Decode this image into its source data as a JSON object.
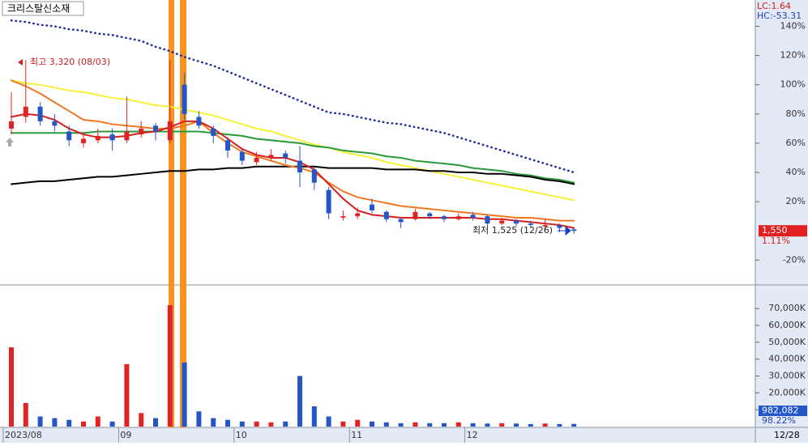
{
  "title": "크리스탈신소재",
  "lc": "LC:1.64",
  "hc": "HC:-53.31",
  "last_date": "12/28",
  "chart_data": [
    {
      "type": "candlestick",
      "categories": [
        "2023/08",
        null,
        null,
        null,
        null,
        null,
        null,
        null,
        "09",
        null,
        null,
        null,
        null,
        null,
        null,
        null,
        "10",
        null,
        null,
        null,
        null,
        null,
        null,
        null,
        "11",
        null,
        null,
        null,
        null,
        null,
        null,
        null,
        "12",
        null,
        null,
        null,
        null,
        null,
        null,
        null
      ],
      "open": [
        70,
        78,
        85,
        75,
        68,
        60,
        62,
        66,
        62,
        66,
        72,
        62,
        100,
        78,
        70,
        62,
        54,
        47,
        50,
        53,
        48,
        42,
        28,
        9,
        10,
        18,
        13,
        8,
        8,
        12,
        10,
        8,
        11,
        10,
        5,
        7,
        5,
        3,
        4,
        1
      ],
      "high": [
        95,
        117,
        88,
        80,
        72,
        66,
        70,
        70,
        92,
        75,
        74,
        117,
        108,
        82,
        72,
        64,
        56,
        54,
        56,
        55,
        58,
        44,
        30,
        14,
        16,
        22,
        14,
        9,
        15,
        13,
        11,
        12,
        13,
        11,
        9,
        8,
        7,
        8,
        5,
        2
      ],
      "low": [
        66,
        74,
        72,
        68,
        58,
        57,
        60,
        55,
        60,
        64,
        62,
        60,
        76,
        70,
        60,
        50,
        45,
        45,
        48,
        46,
        30,
        28,
        8,
        7,
        8,
        12,
        6,
        2,
        7,
        8,
        6,
        7,
        7,
        3,
        4,
        3,
        2,
        1,
        -1,
        -2
      ],
      "close": [
        75,
        85,
        75,
        72,
        62,
        63,
        65,
        62,
        68,
        70,
        68,
        75,
        80,
        72,
        65,
        55,
        48,
        50,
        52,
        50,
        40,
        33,
        12,
        10,
        12,
        14,
        8,
        6,
        13,
        10,
        8,
        10,
        9,
        5,
        7,
        5,
        4,
        4,
        2,
        0
      ],
      "up_color": "#e02424",
      "down_color": "#2456c8",
      "series": [
        {
          "color": "#1c2a9c",
          "dotted": true,
          "values": [
            144,
            143,
            141,
            140,
            138,
            137,
            135,
            134,
            132,
            130,
            126,
            123,
            119,
            116,
            113,
            109,
            105,
            101,
            97,
            93,
            89,
            85,
            81,
            80,
            78,
            76,
            74,
            73,
            71,
            69,
            67,
            64,
            61,
            58,
            55,
            52,
            49,
            46,
            43,
            40
          ]
        },
        {
          "color": "#f5f03a",
          "values": [
            103,
            101,
            100,
            98,
            96,
            95,
            93,
            91,
            90,
            88,
            86,
            85,
            83,
            81,
            79,
            76,
            73,
            70,
            68,
            65,
            62,
            59,
            57,
            54,
            52,
            50,
            47,
            45,
            43,
            41,
            39,
            37,
            35,
            33,
            31,
            29,
            27,
            25,
            23,
            21
          ]
        },
        {
          "color": "#2a9a3a",
          "values": [
            67,
            67,
            67,
            67,
            67,
            67,
            68,
            68,
            68,
            68,
            68,
            68,
            68,
            68,
            67,
            66,
            65,
            63,
            62,
            61,
            60,
            58,
            57,
            55,
            54,
            53,
            51,
            50,
            48,
            47,
            46,
            45,
            43,
            42,
            41,
            39,
            38,
            36,
            35,
            33
          ]
        },
        {
          "color": "#000000",
          "values": [
            32,
            33,
            34,
            34,
            35,
            36,
            37,
            37,
            38,
            39,
            40,
            41,
            41,
            42,
            42,
            43,
            43,
            44,
            44,
            44,
            44,
            44,
            43,
            43,
            43,
            43,
            42,
            42,
            42,
            41,
            41,
            40,
            40,
            39,
            39,
            38,
            37,
            35,
            34,
            32
          ]
        },
        {
          "color": "#f07820",
          "values": [
            103,
            99,
            94,
            88,
            82,
            76,
            75,
            73,
            72,
            71,
            70,
            70,
            72,
            75,
            67,
            60,
            54,
            51,
            48,
            45,
            43,
            40,
            33,
            27,
            23,
            21,
            19,
            17,
            16,
            15,
            14,
            13,
            12,
            11,
            10,
            9,
            9,
            8,
            7,
            7
          ]
        },
        {
          "color": "#d42020",
          "values": [
            78,
            80,
            79,
            76,
            70,
            66,
            64,
            64,
            65,
            67,
            68,
            71,
            75,
            75,
            70,
            63,
            56,
            52,
            50,
            50,
            47,
            42,
            32,
            22,
            14,
            11,
            10,
            9,
            9,
            9,
            9,
            9,
            9,
            8,
            8,
            7,
            6,
            5,
            4,
            2
          ]
        }
      ],
      "ylim": [
        -37,
        158
      ],
      "yticks": [
        {
          "value": 140,
          "label": "140%"
        },
        {
          "value": 120,
          "label": "120%"
        },
        {
          "value": 100,
          "label": "100%"
        },
        {
          "value": 80,
          "label": "80%"
        },
        {
          "value": 60,
          "label": "60%"
        },
        {
          "value": 40,
          "label": "40%"
        },
        {
          "value": 20,
          "label": "20%"
        },
        {
          "value": -20,
          "label": "-20%"
        }
      ],
      "annotations": [
        "최고 3,320 (08/03)",
        "최저 1,525 (12/26)"
      ],
      "price_label": "1,550",
      "change_label": "1.11%"
    },
    {
      "type": "bar",
      "values": [
        47000,
        14000,
        6000,
        5000,
        4000,
        3000,
        6000,
        3000,
        37000,
        8000,
        5000,
        72000,
        38000,
        9000,
        5000,
        4000,
        3000,
        3000,
        2500,
        3000,
        30000,
        12000,
        6000,
        3000,
        4000,
        3000,
        2500,
        2000,
        2500,
        2000,
        2000,
        2500,
        2000,
        1800,
        2000,
        1800,
        1500,
        1800,
        1500,
        1600
      ],
      "ylim": [
        0,
        84000
      ],
      "yticks": [
        {
          "value": 70000,
          "label": "70,000K"
        },
        {
          "value": 60000,
          "label": "60,000K"
        },
        {
          "value": 50000,
          "label": "50,000K"
        },
        {
          "value": 40000,
          "label": "40,000K"
        },
        {
          "value": 30000,
          "label": "30,000K"
        },
        {
          "value": 20000,
          "label": "20,000K"
        },
        {
          "value": 10000,
          "label": "10,000K"
        }
      ],
      "volume_label": "982,082",
      "ratio_label": "98.22%"
    }
  ]
}
